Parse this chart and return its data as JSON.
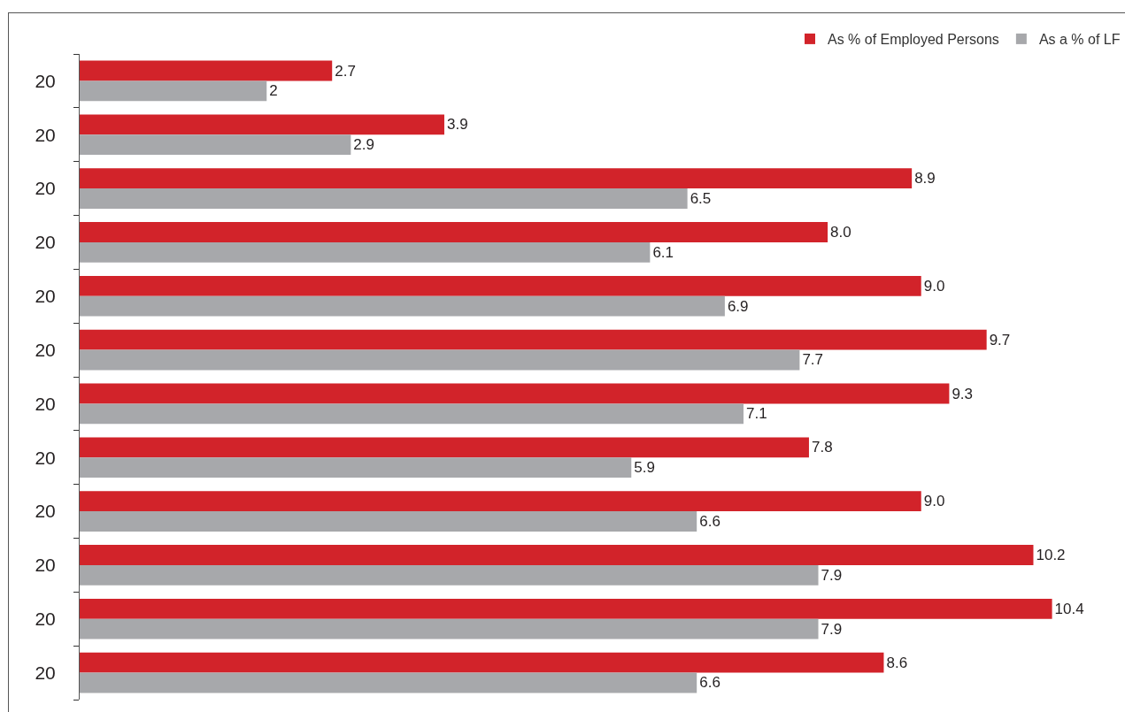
{
  "chart_data": {
    "type": "bar",
    "orientation": "horizontal",
    "categories": [
      "20",
      "20",
      "20",
      "20",
      "20",
      "20",
      "20",
      "20",
      "20",
      "20",
      "20",
      "20"
    ],
    "series": [
      {
        "name": "As % of Employed Persons",
        "color": "#d2232a",
        "values": [
          2.7,
          3.9,
          8.9,
          8.0,
          9.0,
          9.7,
          9.3,
          7.8,
          9.0,
          10.2,
          10.4,
          8.6
        ],
        "value_labels": [
          "2.7",
          "3.9",
          "8.9",
          "8.0",
          "9.0",
          "9.7",
          "9.3",
          "7.8",
          "9.0",
          "10.2",
          "10.4",
          "8.6"
        ]
      },
      {
        "name": "As a % of LF",
        "color": "#a7a8ab",
        "values": [
          2,
          2.9,
          6.5,
          6.1,
          6.9,
          7.7,
          7.1,
          5.9,
          6.6,
          7.9,
          7.9,
          6.6
        ],
        "value_labels": [
          "2",
          "2.9",
          "6.5",
          "6.1",
          "6.9",
          "7.7",
          "7.1",
          "5.9",
          "6.6",
          "7.9",
          "7.9",
          "6.6"
        ]
      }
    ],
    "legend": "top right",
    "tick_labels": "y"
  }
}
